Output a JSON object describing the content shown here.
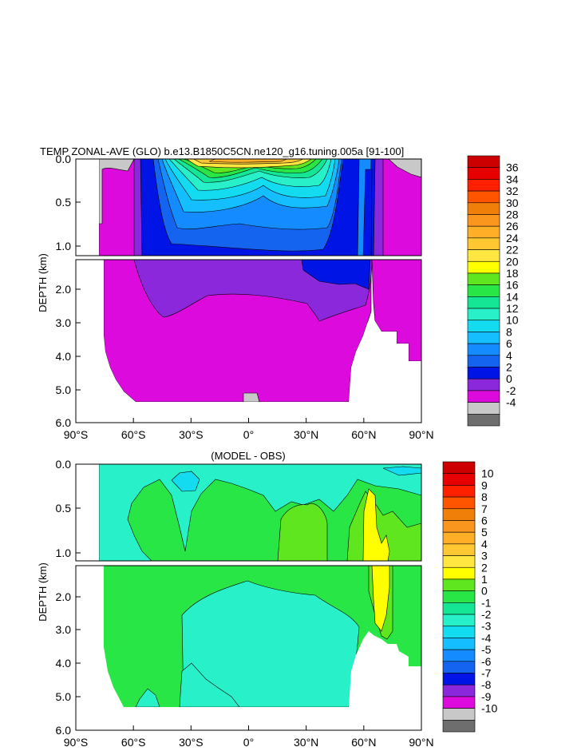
{
  "chart_data": [
    {
      "type": "heatmap",
      "title": "TEMP ZONAL-AVE (GLO) b.e13.B1850C5CN.ne120_g16.tuning.005a [91-100]",
      "ylabel": "DEPTH (km)",
      "x_ticks": [
        "90°S",
        "60°S",
        "30°S",
        "0°",
        "30°N",
        "60°N",
        "90°N"
      ],
      "y_ticks_upper": [
        "0.0",
        "0.5",
        "1.0"
      ],
      "y_ticks_lower": [
        "2.0",
        "3.0",
        "4.0",
        "5.0",
        "6.0"
      ],
      "colorbar_levels": [
        "36",
        "34",
        "32",
        "30",
        "28",
        "26",
        "24",
        "22",
        "20",
        "18",
        "16",
        "14",
        "12",
        "10",
        "8",
        "6",
        "4",
        "2",
        "0",
        "-2",
        "-4"
      ],
      "colorbar_colors": [
        "#cc0000",
        "#e60000",
        "#ff2000",
        "#ff5500",
        "#f07f0a",
        "#fa961e",
        "#ffae28",
        "#ffc832",
        "#ffe640",
        "#ffff00",
        "#5fe61e",
        "#28e646",
        "#14e696",
        "#28f0c8",
        "#14dcf0",
        "#14beff",
        "#148cff",
        "#1464f0",
        "#0014e6",
        "#8c28dc",
        "#dc0adc",
        "#c8c8c8",
        "#6e6e6e"
      ]
    },
    {
      "type": "heatmap",
      "title": "(MODEL - OBS)",
      "ylabel": "DEPTH (km)",
      "x_ticks": [
        "90°S",
        "60°S",
        "30°S",
        "0°",
        "30°N",
        "60°N",
        "90°N"
      ],
      "y_ticks_upper": [
        "0.0",
        "0.5",
        "1.0"
      ],
      "y_ticks_lower": [
        "2.0",
        "3.0",
        "4.0",
        "5.0",
        "6.0"
      ],
      "colorbar_levels": [
        "10",
        "9",
        "8",
        "7",
        "6",
        "5",
        "4",
        "3",
        "2",
        "1",
        "0",
        "-1",
        "-2",
        "-3",
        "-4",
        "-5",
        "-6",
        "-7",
        "-8",
        "-9",
        "-10"
      ],
      "colorbar_colors": [
        "#cc0000",
        "#e60000",
        "#ff2000",
        "#ff5500",
        "#f07f0a",
        "#fa961e",
        "#ffae28",
        "#ffc832",
        "#ffe640",
        "#ffff00",
        "#5fe61e",
        "#28e646",
        "#14e696",
        "#28f0c8",
        "#14dcf0",
        "#14beff",
        "#148cff",
        "#1464f0",
        "#0014e6",
        "#8c28dc",
        "#dc0adc",
        "#c8c8c8",
        "#6e6e6e"
      ]
    }
  ]
}
